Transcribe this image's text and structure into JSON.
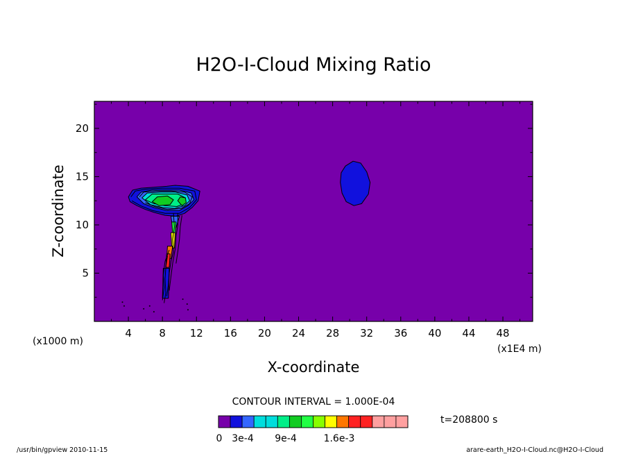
{
  "chart_data": {
    "type": "heatmap",
    "title": "H2O-I-Cloud Mixing Ratio",
    "xlabel": "X-coordinate",
    "ylabel": "Z-coordinate",
    "x_unit_left": "(x1000 m)",
    "x_unit_right": "(x1E4 m)",
    "xlim": [
      0,
      51.5
    ],
    "ylim": [
      0,
      22.8
    ],
    "x_ticks": [
      4,
      8,
      12,
      16,
      20,
      24,
      28,
      32,
      36,
      40,
      44,
      48
    ],
    "y_ticks": [
      5,
      10,
      15,
      20
    ],
    "x_tick_labels": [
      "4",
      "8",
      "12",
      "16",
      "20",
      "24",
      "28",
      "32",
      "36",
      "40",
      "44",
      "48"
    ],
    "y_tick_labels": [
      "5",
      "10",
      "15",
      "20"
    ],
    "background_color": "#7700aa",
    "features": [
      {
        "name": "anvil-outer",
        "color": "#1111dd",
        "points": [
          [
            4.0,
            12.9
          ],
          [
            4.5,
            13.6
          ],
          [
            5.5,
            13.8
          ],
          [
            7.0,
            13.9
          ],
          [
            8.5,
            14.0
          ],
          [
            9.5,
            14.1
          ],
          [
            11.0,
            14.0
          ],
          [
            12.4,
            13.5
          ],
          [
            12.2,
            12.5
          ],
          [
            11.5,
            11.8
          ],
          [
            10.6,
            11.2
          ],
          [
            9.6,
            10.9
          ],
          [
            8.3,
            11.0
          ],
          [
            7.0,
            11.3
          ],
          [
            6.0,
            11.6
          ],
          [
            5.0,
            12.0
          ],
          [
            4.2,
            12.4
          ]
        ]
      },
      {
        "name": "anvil-blue",
        "color": "#3366ff",
        "points": [
          [
            5.0,
            12.9
          ],
          [
            5.5,
            13.4
          ],
          [
            6.8,
            13.6
          ],
          [
            8.5,
            13.6
          ],
          [
            10.0,
            13.6
          ],
          [
            11.4,
            13.3
          ],
          [
            11.7,
            12.6
          ],
          [
            11.0,
            12.0
          ],
          [
            10.0,
            11.5
          ],
          [
            8.5,
            11.5
          ],
          [
            7.0,
            11.8
          ],
          [
            5.8,
            12.2
          ]
        ]
      },
      {
        "name": "anvil-cyan",
        "color": "#00dddd",
        "points": [
          [
            5.6,
            12.8
          ],
          [
            6.2,
            13.3
          ],
          [
            7.8,
            13.4
          ],
          [
            9.5,
            13.4
          ],
          [
            10.9,
            13.1
          ],
          [
            11.2,
            12.5
          ],
          [
            10.6,
            12.0
          ],
          [
            9.4,
            11.7
          ],
          [
            8.0,
            11.8
          ],
          [
            6.6,
            12.1
          ]
        ]
      },
      {
        "name": "anvil-green",
        "color": "#00ee88",
        "points": [
          [
            6.0,
            12.6
          ],
          [
            6.8,
            13.2
          ],
          [
            8.4,
            13.2
          ],
          [
            9.8,
            13.2
          ],
          [
            10.7,
            12.8
          ],
          [
            10.6,
            12.2
          ],
          [
            9.7,
            11.9
          ],
          [
            8.3,
            12.0
          ],
          [
            7.0,
            12.2
          ]
        ]
      },
      {
        "name": "anvil-core-1",
        "color": "#11cc22",
        "points": [
          [
            6.8,
            12.4
          ],
          [
            7.4,
            12.9
          ],
          [
            8.6,
            13.0
          ],
          [
            9.3,
            12.6
          ],
          [
            8.9,
            12.1
          ],
          [
            7.6,
            12.0
          ]
        ]
      },
      {
        "name": "anvil-core-2",
        "color": "#11cc22",
        "points": [
          [
            9.8,
            12.5
          ],
          [
            10.1,
            12.9
          ],
          [
            10.7,
            12.8
          ],
          [
            10.8,
            12.3
          ],
          [
            10.3,
            12.0
          ]
        ]
      },
      {
        "name": "column-blue",
        "color": "#3366ff",
        "points": [
          [
            9.0,
            10.9
          ],
          [
            10.0,
            10.9
          ],
          [
            9.6,
            9.7
          ],
          [
            9.2,
            9.7
          ]
        ]
      },
      {
        "name": "column-green",
        "color": "#22ff44",
        "points": [
          [
            9.1,
            10.3
          ],
          [
            9.6,
            10.3
          ],
          [
            9.5,
            9.0
          ],
          [
            9.2,
            9.0
          ]
        ]
      },
      {
        "name": "column-yellow",
        "color": "#ffff00",
        "points": [
          [
            9.0,
            9.2
          ],
          [
            9.5,
            9.2
          ],
          [
            9.4,
            7.6
          ],
          [
            9.1,
            7.6
          ]
        ]
      },
      {
        "name": "column-orange",
        "color": "#ff7700",
        "points": [
          [
            8.6,
            7.8
          ],
          [
            9.2,
            7.8
          ],
          [
            9.0,
            6.5
          ],
          [
            8.5,
            6.5
          ]
        ]
      },
      {
        "name": "column-red",
        "color": "#ff2222",
        "points": [
          [
            8.5,
            7.0
          ],
          [
            8.9,
            7.0
          ],
          [
            8.8,
            5.6
          ],
          [
            8.4,
            5.6
          ]
        ]
      },
      {
        "name": "column-blue-low",
        "color": "#1111dd",
        "points": [
          [
            8.1,
            5.5
          ],
          [
            8.8,
            5.5
          ],
          [
            8.7,
            2.4
          ],
          [
            8.0,
            2.4
          ]
        ]
      },
      {
        "name": "isolated-cloud",
        "color": "#1111dd",
        "points": [
          [
            29.5,
            16.1
          ],
          [
            30.4,
            16.6
          ],
          [
            31.3,
            16.4
          ],
          [
            32.0,
            15.5
          ],
          [
            32.4,
            14.4
          ],
          [
            32.2,
            13.2
          ],
          [
            31.4,
            12.2
          ],
          [
            30.5,
            12.0
          ],
          [
            29.6,
            12.4
          ],
          [
            29.1,
            13.3
          ],
          [
            28.9,
            14.4
          ],
          [
            29.0,
            15.4
          ]
        ]
      }
    ],
    "contour_lines": [
      {
        "name": "anvil-contour-1",
        "points": [
          [
            4.3,
            12.9
          ],
          [
            4.8,
            13.5
          ],
          [
            6.0,
            13.7
          ],
          [
            8.0,
            13.8
          ],
          [
            10.0,
            13.8
          ],
          [
            11.8,
            13.5
          ],
          [
            12.0,
            12.6
          ],
          [
            11.2,
            11.8
          ],
          [
            10.0,
            11.2
          ],
          [
            8.3,
            11.2
          ],
          [
            6.8,
            11.5
          ],
          [
            5.4,
            12.0
          ],
          [
            4.4,
            12.5
          ]
        ]
      },
      {
        "name": "anvil-contour-2",
        "points": [
          [
            5.3,
            12.9
          ],
          [
            5.8,
            13.4
          ],
          [
            7.2,
            13.5
          ],
          [
            9.0,
            13.5
          ],
          [
            10.6,
            13.4
          ],
          [
            11.5,
            12.9
          ],
          [
            11.2,
            12.2
          ],
          [
            10.2,
            11.7
          ],
          [
            8.6,
            11.6
          ],
          [
            7.1,
            11.9
          ],
          [
            6.0,
            12.3
          ]
        ]
      },
      {
        "name": "column-contour-1",
        "points": [
          [
            9.3,
            11.2
          ],
          [
            9.4,
            9.8
          ],
          [
            9.2,
            8.5
          ],
          [
            9.3,
            7.2
          ],
          [
            9.0,
            6.2
          ],
          [
            8.8,
            5.0
          ],
          [
            8.7,
            3.8
          ],
          [
            8.5,
            2.6
          ]
        ]
      },
      {
        "name": "column-contour-2",
        "points": [
          [
            9.8,
            11.2
          ],
          [
            9.8,
            10.0
          ],
          [
            9.6,
            8.8
          ],
          [
            9.5,
            7.5
          ],
          [
            9.2,
            6.0
          ],
          [
            9.0,
            4.6
          ],
          [
            8.8,
            3.2
          ]
        ]
      },
      {
        "name": "column-contour-3",
        "points": [
          [
            10.3,
            11.0
          ],
          [
            10.1,
            9.8
          ],
          [
            10.0,
            8.5
          ],
          [
            9.8,
            7.2
          ],
          [
            9.6,
            6.0
          ]
        ]
      },
      {
        "name": "column-contour-4",
        "points": [
          [
            8.8,
            7.4
          ],
          [
            8.3,
            6.2
          ],
          [
            8.1,
            4.8
          ],
          [
            8.2,
            3.5
          ],
          [
            8.0,
            2.2
          ]
        ]
      },
      {
        "name": "column-contour-5",
        "points": [
          [
            8.6,
            6.8
          ],
          [
            8.4,
            5.6
          ],
          [
            8.3,
            4.4
          ],
          [
            8.4,
            3.0
          ],
          [
            8.2,
            1.9
          ]
        ]
      }
    ],
    "speckles": [
      [
        3.3,
        2.0
      ],
      [
        3.5,
        1.6
      ],
      [
        5.8,
        1.3
      ],
      [
        6.5,
        1.6
      ],
      [
        7.0,
        1.0
      ],
      [
        10.4,
        2.3
      ],
      [
        10.9,
        1.8
      ],
      [
        11.0,
        1.2
      ]
    ]
  },
  "contour_interval_label": "CONTOUR INTERVAL = 1.000E-04",
  "time_label": "t=208800 s",
  "colorbar": {
    "colors": [
      "#7700aa",
      "#1111dd",
      "#3366ff",
      "#00dddd",
      "#00dddd",
      "#00ee88",
      "#11cc22",
      "#22ff44",
      "#88ff00",
      "#ffff00",
      "#ff7700",
      "#ff2222",
      "#ff2222",
      "#ffa0a0",
      "#ffa0a0",
      "#ffa0a0"
    ],
    "widths": [
      1,
      1,
      1,
      1,
      1,
      1,
      1,
      1,
      1,
      1,
      1,
      1,
      1,
      1,
      1,
      1
    ],
    "tick_labels": [
      "0",
      "3e-4",
      "9e-4",
      "1.6e-3"
    ]
  },
  "footer_left": "/usr/bin/gpview  2010-11-15",
  "footer_right": "arare-earth_H2O-I-Cloud.nc@H2O-I-Cloud"
}
